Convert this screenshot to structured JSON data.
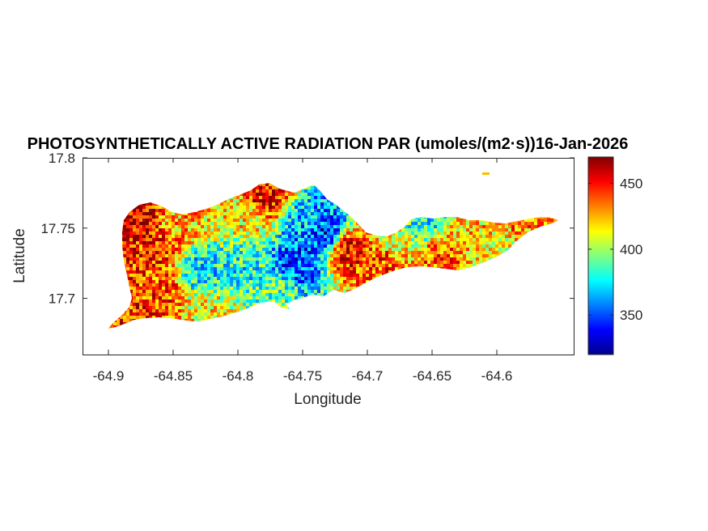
{
  "chart_data": {
    "type": "heatmap",
    "title": "PHOTOSYNTHETICALLY ACTIVE RADIATION PAR (umoles/(m2·s))16-Jan-2026",
    "xlabel": "Longitude",
    "ylabel": "Latitude",
    "xlim": [
      -64.92,
      -64.54
    ],
    "ylim": [
      17.66,
      17.8
    ],
    "xticks": [
      -64.9,
      -64.85,
      -64.8,
      -64.75,
      -64.7,
      -64.65,
      -64.6
    ],
    "xtick_labels": [
      "-64.9",
      "-64.85",
      "-64.8",
      "-64.75",
      "-64.7",
      "-64.65",
      "-64.6"
    ],
    "yticks": [
      17.7,
      17.75,
      17.8
    ],
    "ytick_labels": [
      "17.7",
      "17.75",
      "17.8"
    ],
    "colorbar": {
      "colormap": "jet",
      "clim": [
        320,
        470
      ],
      "ticks": [
        350,
        400,
        450
      ],
      "tick_labels": [
        "350",
        "400",
        "450"
      ]
    },
    "grid": false,
    "regions": [
      {
        "lon": -64.875,
        "lat": 17.755,
        "value": 455
      },
      {
        "lon": -64.865,
        "lat": 17.74,
        "value": 445
      },
      {
        "lon": -64.86,
        "lat": 17.705,
        "value": 440
      },
      {
        "lon": -64.89,
        "lat": 17.69,
        "value": 445
      },
      {
        "lon": -64.85,
        "lat": 17.755,
        "value": 425
      },
      {
        "lon": -64.83,
        "lat": 17.72,
        "value": 375
      },
      {
        "lon": -64.8,
        "lat": 17.725,
        "value": 380
      },
      {
        "lon": -64.8,
        "lat": 17.76,
        "value": 415
      },
      {
        "lon": -64.78,
        "lat": 17.775,
        "value": 450
      },
      {
        "lon": -64.745,
        "lat": 17.755,
        "value": 365
      },
      {
        "lon": -64.735,
        "lat": 17.748,
        "value": 345
      },
      {
        "lon": -64.755,
        "lat": 17.725,
        "value": 350
      },
      {
        "lon": -64.77,
        "lat": 17.705,
        "value": 390
      },
      {
        "lon": -64.715,
        "lat": 17.735,
        "value": 450
      },
      {
        "lon": -64.69,
        "lat": 17.725,
        "value": 440
      },
      {
        "lon": -64.68,
        "lat": 17.745,
        "value": 410
      },
      {
        "lon": -64.66,
        "lat": 17.755,
        "value": 380
      },
      {
        "lon": -64.645,
        "lat": 17.73,
        "value": 435
      },
      {
        "lon": -64.62,
        "lat": 17.745,
        "value": 420
      },
      {
        "lon": -64.58,
        "lat": 17.755,
        "value": 430
      },
      {
        "lon": -64.6,
        "lat": 17.735,
        "value": 410
      },
      {
        "lon": -64.825,
        "lat": 17.69,
        "value": 415
      },
      {
        "lon": -64.91,
        "lat": 17.68,
        "value": 430
      }
    ]
  }
}
